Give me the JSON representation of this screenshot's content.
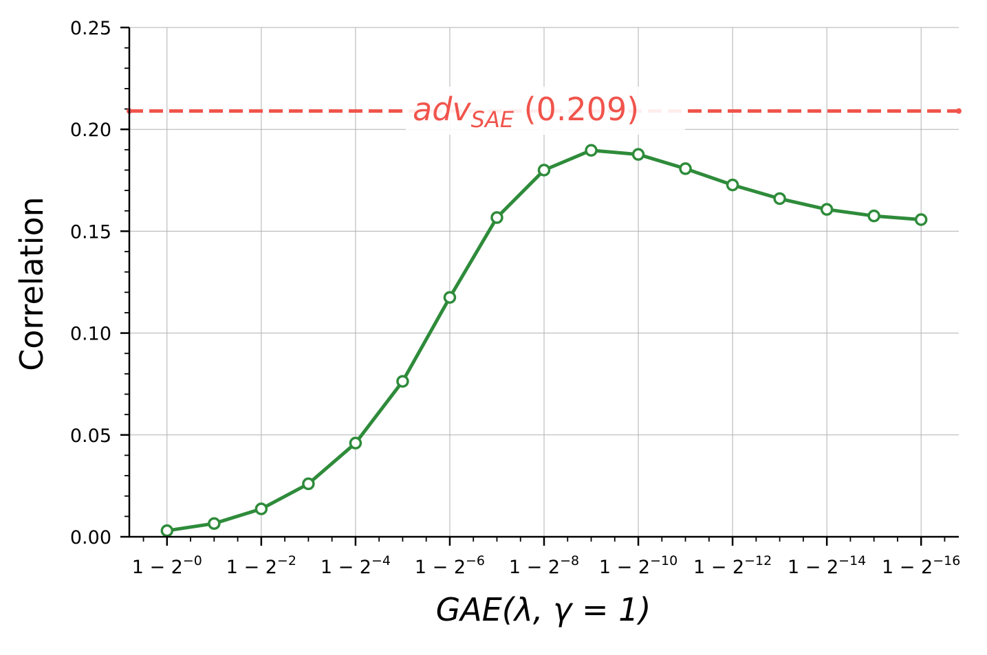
{
  "chart_data": {
    "type": "line",
    "title": "",
    "xlabel": "GAE(λ, γ = 1)",
    "ylabel": "Correlation",
    "x_ticks": [
      "1 − 2^-0",
      "1 − 2^-2",
      "1 − 2^-4",
      "1 − 2^-6",
      "1 − 2^-8",
      "1 − 2^-10",
      "1 − 2^-12",
      "1 − 2^-14",
      "1 − 2^-16"
    ],
    "x_tick_exponents": [
      "0",
      "2",
      "4",
      "6",
      "8",
      "10",
      "12",
      "14",
      "16"
    ],
    "y_ticks": [
      "0.00",
      "0.05",
      "0.10",
      "0.15",
      "0.20",
      "0.25"
    ],
    "ylim": [
      0,
      0.25
    ],
    "xlim": [
      -0.8,
      16.8
    ],
    "grid": true,
    "series": [
      {
        "color": "#2e8b3a",
        "marker": "open-circle",
        "x": [
          0,
          1,
          2,
          3,
          4,
          5,
          6,
          7,
          8,
          9,
          10,
          11,
          12,
          13,
          14,
          15,
          16
        ],
        "values": [
          0.003,
          0.0065,
          0.0137,
          0.026,
          0.046,
          0.0763,
          0.1175,
          0.1567,
          0.18,
          0.1897,
          0.1877,
          0.1807,
          0.1727,
          0.166,
          0.1607,
          0.1575,
          0.1557
        ]
      }
    ],
    "reference_line": {
      "value": 0.209,
      "label_main": "adv",
      "label_sub": "SAE",
      "label_value": "(0.209)",
      "color": "#f0544c",
      "style": "dashed"
    }
  }
}
